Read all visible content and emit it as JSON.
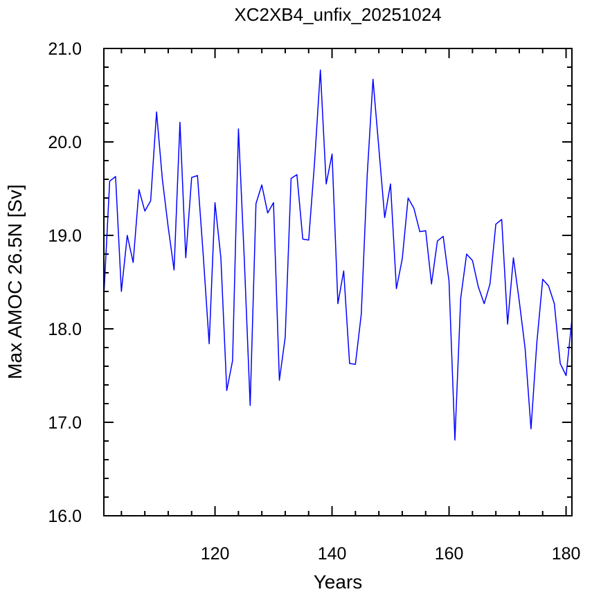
{
  "chart_data": {
    "type": "line",
    "title": "XC2XB4_unfix_20251024",
    "xlabel": "Years",
    "ylabel": "Max AMOC 26.5N [Sv]",
    "xlim": [
      101,
      181
    ],
    "ylim": [
      16.0,
      21.0
    ],
    "x_major_ticks": [
      120,
      140,
      160,
      180
    ],
    "x_tick_labels": [
      "120",
      "140",
      "160",
      "180"
    ],
    "y_major_ticks": [
      16.0,
      17.0,
      18.0,
      19.0,
      20.0,
      21.0
    ],
    "y_tick_labels": [
      "16.0",
      "17.0",
      "18.0",
      "19.0",
      "20.0",
      "21.0"
    ],
    "grid": false,
    "legend": "none",
    "series": [
      {
        "color": "#0000ff",
        "x": [
          101,
          102,
          103,
          104,
          105,
          106,
          107,
          108,
          109,
          110,
          111,
          112,
          113,
          114,
          115,
          116,
          117,
          118,
          119,
          120,
          121,
          122,
          123,
          124,
          125,
          126,
          127,
          128,
          129,
          130,
          131,
          132,
          133,
          134,
          135,
          136,
          137,
          138,
          139,
          140,
          141,
          142,
          143,
          144,
          145,
          146,
          147,
          148,
          149,
          150,
          151,
          152,
          153,
          154,
          155,
          156,
          157,
          158,
          159,
          160,
          161,
          162,
          163,
          164,
          165,
          166,
          167,
          168,
          169,
          170,
          171,
          172,
          173,
          174,
          175,
          176,
          177,
          178,
          179,
          180,
          181
        ],
        "values": [
          18.35,
          19.58,
          19.63,
          18.4,
          19.0,
          18.71,
          19.49,
          19.26,
          19.37,
          20.32,
          19.6,
          19.09,
          18.63,
          20.21,
          18.76,
          19.62,
          19.64,
          18.78,
          17.84,
          19.35,
          18.76,
          17.34,
          17.66,
          20.14,
          18.75,
          17.18,
          19.34,
          19.54,
          19.24,
          19.35,
          17.45,
          17.91,
          19.61,
          19.65,
          18.96,
          18.95,
          19.77,
          20.77,
          19.55,
          19.87,
          18.27,
          18.62,
          17.63,
          17.62,
          18.16,
          19.64,
          20.67,
          19.93,
          19.19,
          19.55,
          18.43,
          18.75,
          19.4,
          19.29,
          19.04,
          19.05,
          18.48,
          18.94,
          18.99,
          18.51,
          16.81,
          18.33,
          18.8,
          18.73,
          18.45,
          18.27,
          18.48,
          19.12,
          19.17,
          18.05,
          18.76,
          18.3,
          17.79,
          16.93,
          17.85,
          18.53,
          18.46,
          18.27,
          17.63,
          17.5,
          18.1
        ]
      }
    ]
  }
}
